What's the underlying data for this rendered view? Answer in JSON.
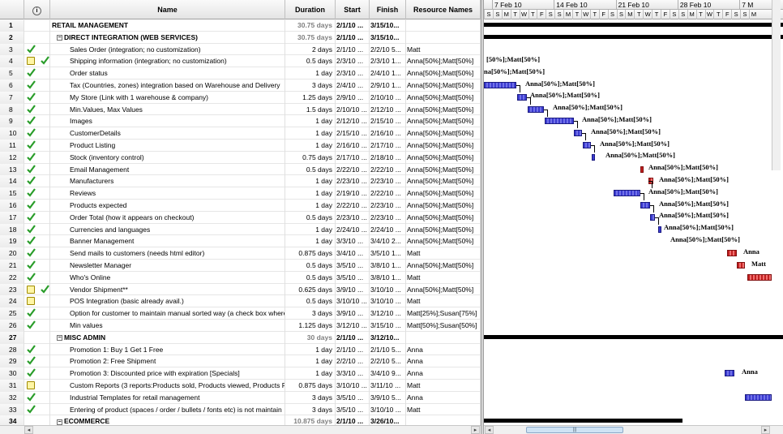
{
  "columns": {
    "indicators_icon": "info-icon",
    "name": "Name",
    "duration": "Duration",
    "start": "Start",
    "finish": "Finish",
    "resources": "Resource Names"
  },
  "timescale": {
    "weeks": [
      "7 Feb 10",
      "14 Feb 10",
      "21 Feb 10",
      "28 Feb 10",
      "7 M"
    ],
    "days": [
      "S",
      "S",
      "M",
      "T",
      "W",
      "T",
      "F",
      "S",
      "S",
      "M",
      "T",
      "W",
      "T",
      "F",
      "S",
      "S",
      "M",
      "T",
      "W",
      "T",
      "F",
      "S",
      "S",
      "M",
      "T",
      "W",
      "T",
      "F",
      "S",
      "S",
      "M"
    ]
  },
  "tasks": [
    {
      "id": "1",
      "name": "RETAIL MANAGEMENT",
      "duration": "30.75 days",
      "start": "2/1/10 ...",
      "finish": "3/15/10...",
      "resources": "",
      "summary": true,
      "level": 0,
      "check": false,
      "note": false
    },
    {
      "id": "2",
      "name": "DIRECT INTEGRATION (WEB SERVICES)",
      "duration": "30.75 days",
      "start": "2/1/10 ...",
      "finish": "3/15/10...",
      "resources": "",
      "summary": true,
      "level": 1,
      "check": false,
      "note": false
    },
    {
      "id": "3",
      "name": "Sales Order (integration; no customization)",
      "duration": "2 days",
      "start": "2/1/10 ...",
      "finish": "2/2/10 5...",
      "resources": "Matt",
      "summary": false,
      "level": 2,
      "check": true,
      "note": false
    },
    {
      "id": "4",
      "name": "Shipping information (integration; no customization)",
      "duration": "0.5 days",
      "start": "2/3/10 ...",
      "finish": "2/3/10 1...",
      "resources": "Anna[50%];Matt[50%]",
      "summary": false,
      "level": 2,
      "check": true,
      "note": true
    },
    {
      "id": "5",
      "name": "Order status",
      "duration": "1 day",
      "start": "2/3/10 ...",
      "finish": "2/4/10 1...",
      "resources": "Anna[50%];Matt[50%]",
      "summary": false,
      "level": 2,
      "check": true,
      "note": false
    },
    {
      "id": "6",
      "name": "Tax (Countries, zones) integration based on Warehouse and Delivery",
      "duration": "3 days",
      "start": "2/4/10 ...",
      "finish": "2/9/10 1...",
      "resources": "Anna[50%];Matt[50%]",
      "summary": false,
      "level": 2,
      "check": true,
      "note": false
    },
    {
      "id": "7",
      "name": "My Store (Link with 1 warehouse & company)",
      "duration": "1.25 days",
      "start": "2/9/10 ...",
      "finish": "2/10/10 ...",
      "resources": "Anna[50%];Matt[50%]",
      "summary": false,
      "level": 2,
      "check": true,
      "note": false
    },
    {
      "id": "8",
      "name": "Min.Values, Max Values",
      "duration": "1.5 days",
      "start": "2/10/10 ...",
      "finish": "2/12/10 ...",
      "resources": "Anna[50%];Matt[50%]",
      "summary": false,
      "level": 2,
      "check": true,
      "note": false
    },
    {
      "id": "9",
      "name": "Images",
      "duration": "1 day",
      "start": "2/12/10 ...",
      "finish": "2/15/10 ...",
      "resources": "Anna[50%];Matt[50%]",
      "summary": false,
      "level": 2,
      "check": true,
      "note": false
    },
    {
      "id": "10",
      "name": "CustomerDetails",
      "duration": "1 day",
      "start": "2/15/10 ...",
      "finish": "2/16/10 ...",
      "resources": "Anna[50%];Matt[50%]",
      "summary": false,
      "level": 2,
      "check": true,
      "note": false
    },
    {
      "id": "11",
      "name": "Product Listing",
      "duration": "1 day",
      "start": "2/16/10 ...",
      "finish": "2/17/10 ...",
      "resources": "Anna[50%];Matt[50%]",
      "summary": false,
      "level": 2,
      "check": true,
      "note": false
    },
    {
      "id": "12",
      "name": "Stock (inventory control)",
      "duration": "0.75 days",
      "start": "2/17/10 ...",
      "finish": "2/18/10 ...",
      "resources": "Anna[50%];Matt[50%]",
      "summary": false,
      "level": 2,
      "check": true,
      "note": false
    },
    {
      "id": "13",
      "name": "Email Management",
      "duration": "0.5 days",
      "start": "2/22/10 ...",
      "finish": "2/22/10 ...",
      "resources": "Anna[50%];Matt[50%]",
      "summary": false,
      "level": 2,
      "check": true,
      "note": false
    },
    {
      "id": "14",
      "name": "Manufacturers",
      "duration": "1 day",
      "start": "2/23/10 ...",
      "finish": "2/23/10 ...",
      "resources": "Anna[50%];Matt[50%]",
      "summary": false,
      "level": 2,
      "check": true,
      "note": false
    },
    {
      "id": "15",
      "name": "Reviews",
      "duration": "1 day",
      "start": "2/19/10 ...",
      "finish": "2/22/10 ...",
      "resources": "Anna[50%];Matt[50%]",
      "summary": false,
      "level": 2,
      "check": true,
      "note": false
    },
    {
      "id": "16",
      "name": "Products expected",
      "duration": "1 day",
      "start": "2/22/10 ...",
      "finish": "2/23/10 ...",
      "resources": "Anna[50%];Matt[50%]",
      "summary": false,
      "level": 2,
      "check": true,
      "note": false
    },
    {
      "id": "17",
      "name": "Order Total (how it appears on checkout)",
      "duration": "0.5 days",
      "start": "2/23/10 ...",
      "finish": "2/23/10 ...",
      "resources": "Anna[50%];Matt[50%]",
      "summary": false,
      "level": 2,
      "check": true,
      "note": false
    },
    {
      "id": "18",
      "name": "Currencies and languages",
      "duration": "1 day",
      "start": "2/24/10 ...",
      "finish": "2/24/10 ...",
      "resources": "Anna[50%];Matt[50%]",
      "summary": false,
      "level": 2,
      "check": true,
      "note": false
    },
    {
      "id": "19",
      "name": "Banner Management",
      "duration": "1 day",
      "start": "3/3/10 ...",
      "finish": "3/4/10 2...",
      "resources": "Anna[50%];Matt[50%]",
      "summary": false,
      "level": 2,
      "check": true,
      "note": false
    },
    {
      "id": "20",
      "name": "Send mails to customers (needs html editor)",
      "duration": "0.875 days",
      "start": "3/4/10 ...",
      "finish": "3/5/10 1...",
      "resources": "Matt",
      "summary": false,
      "level": 2,
      "check": true,
      "note": false
    },
    {
      "id": "21",
      "name": "Newsletter Manager",
      "duration": "0.5 days",
      "start": "3/5/10 ...",
      "finish": "3/8/10 1...",
      "resources": "Anna[50%];Matt[50%]",
      "summary": false,
      "level": 2,
      "check": true,
      "note": false
    },
    {
      "id": "22",
      "name": "Who's Online",
      "duration": "0.5 days",
      "start": "3/5/10 ...",
      "finish": "3/8/10 1...",
      "resources": "Matt",
      "summary": false,
      "level": 2,
      "check": true,
      "note": false
    },
    {
      "id": "23",
      "name": "Vendor Shipment**",
      "duration": "0.625 days",
      "start": "3/9/10 ...",
      "finish": "3/10/10 ...",
      "resources": "Anna[50%];Matt[50%]",
      "summary": false,
      "level": 2,
      "check": true,
      "note": true
    },
    {
      "id": "24",
      "name": "POS Integration (basic already avail.)",
      "duration": "0.5 days",
      "start": "3/10/10 ...",
      "finish": "3/10/10 ...",
      "resources": "Matt",
      "summary": false,
      "level": 2,
      "check": false,
      "note": true
    },
    {
      "id": "25",
      "name": "Option for customer to maintain manual sorted way (a check box where",
      "duration": "3 days",
      "start": "3/9/10 ...",
      "finish": "3/12/10 ...",
      "resources": "Matt[25%];Susan[75%]",
      "summary": false,
      "level": 2,
      "check": true,
      "note": false
    },
    {
      "id": "26",
      "name": "Min values",
      "duration": "1.125 days",
      "start": "3/12/10 ...",
      "finish": "3/15/10 ...",
      "resources": "Matt[50%];Susan[50%]",
      "summary": false,
      "level": 2,
      "check": true,
      "note": false
    },
    {
      "id": "27",
      "name": "MISC ADMIN",
      "duration": "30 days",
      "start": "2/1/10 ...",
      "finish": "3/12/10...",
      "resources": "",
      "summary": true,
      "level": 1,
      "check": false,
      "note": false
    },
    {
      "id": "28",
      "name": "Promotion 1: Buy 1 Get 1 Free",
      "duration": "1 day",
      "start": "2/1/10 ...",
      "finish": "2/1/10 5...",
      "resources": "Anna",
      "summary": false,
      "level": 2,
      "check": true,
      "note": false
    },
    {
      "id": "29",
      "name": "Promotion 2: Free Shipment",
      "duration": "1 day",
      "start": "2/2/10 ...",
      "finish": "2/2/10 5...",
      "resources": "Anna",
      "summary": false,
      "level": 2,
      "check": true,
      "note": false
    },
    {
      "id": "30",
      "name": "Promotion 3: Discounted price with expiration [Specials]",
      "duration": "1 day",
      "start": "3/3/10 ...",
      "finish": "3/4/10 9...",
      "resources": "Anna",
      "summary": false,
      "level": 2,
      "check": true,
      "note": false
    },
    {
      "id": "31",
      "name": "Custom Reports (3 reports:Products sold, Products viewed, Products P",
      "duration": "0.875 days",
      "start": "3/10/10 ...",
      "finish": "3/11/10 ...",
      "resources": "Matt",
      "summary": false,
      "level": 2,
      "check": false,
      "note": true
    },
    {
      "id": "32",
      "name": "Industrial Templates for retail management",
      "duration": "3 days",
      "start": "3/5/10 ...",
      "finish": "3/9/10 5...",
      "resources": "Anna",
      "summary": false,
      "level": 2,
      "check": true,
      "note": false
    },
    {
      "id": "33",
      "name": "Entering of product (spaces / order / bullets / fonts etc) is not maintain",
      "duration": "3 days",
      "start": "3/5/10 ...",
      "finish": "3/10/10 ...",
      "resources": "Matt",
      "summary": false,
      "level": 2,
      "check": true,
      "note": false
    },
    {
      "id": "34",
      "name": "ECOMMERCE",
      "duration": "10.875 days",
      "start": "2/1/10 ...",
      "finish": "3/26/10...",
      "resources": "",
      "summary": true,
      "level": 1,
      "check": false,
      "note": false
    }
  ],
  "bar_labels": [
    "[50%];Matt[50%]",
    "na[50%];Matt[50%]",
    "Anna[50%];Matt[50%]",
    "Anna[50%];Matt[50%]",
    "Anna[50%];Matt[50%]",
    "Anna[50%];Matt[50%]",
    "Anna[50%];Matt[50%]",
    "Anna[50%];Matt[50%]",
    "Anna[50%];Matt[50%]",
    "Anna[50%];Matt[50%]",
    "Anna[50%];Matt[50%]",
    "Anna[50%];Matt[50%]",
    "Anna[50%];Matt[50%]",
    "Anna[50%];Matt[50%]",
    "Anna[50%];Matt[50%]",
    "Anna[50%];Matt[50%]",
    "Anna",
    "Matt",
    "Anna"
  ],
  "scroll": {
    "left_arrow": "◂",
    "right_arrow": "▸",
    "thumb_grip": "|||"
  }
}
